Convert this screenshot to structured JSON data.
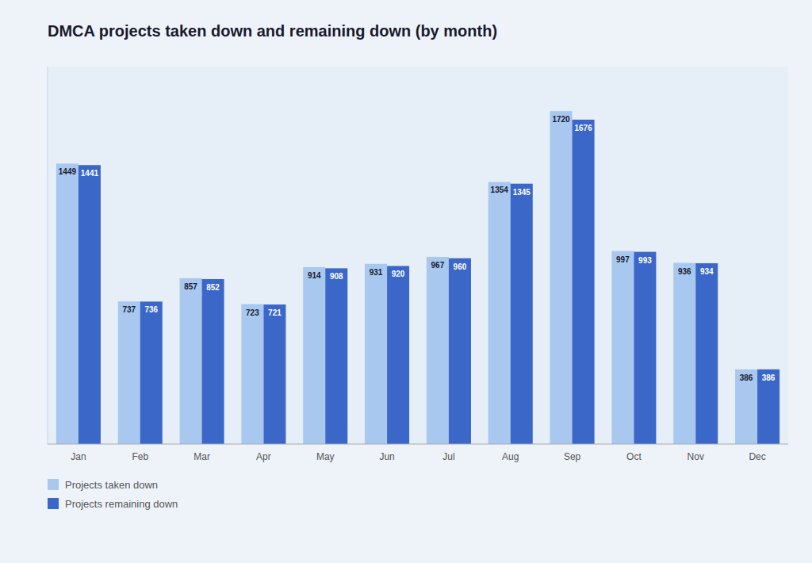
{
  "chart_data": {
    "type": "bar",
    "title": "DMCA projects taken down and remaining down (by month)",
    "categories": [
      "Jan",
      "Feb",
      "Mar",
      "Apr",
      "May",
      "Jun",
      "Jul",
      "Aug",
      "Sep",
      "Oct",
      "Nov",
      "Dec"
    ],
    "series": [
      {
        "name": "Projects taken down",
        "color": "#a8c8f0",
        "values": [
          1449,
          737,
          857,
          723,
          914,
          931,
          967,
          1354,
          1720,
          997,
          936,
          386
        ]
      },
      {
        "name": "Projects remaining down",
        "color": "#3a67c8",
        "values": [
          1441,
          736,
          852,
          721,
          908,
          920,
          960,
          1345,
          1676,
          993,
          934,
          386
        ]
      }
    ],
    "ylim": [
      0,
      1950
    ],
    "grid": false,
    "legend": "bottom",
    "data_labels": true,
    "tick_labels": "x"
  }
}
